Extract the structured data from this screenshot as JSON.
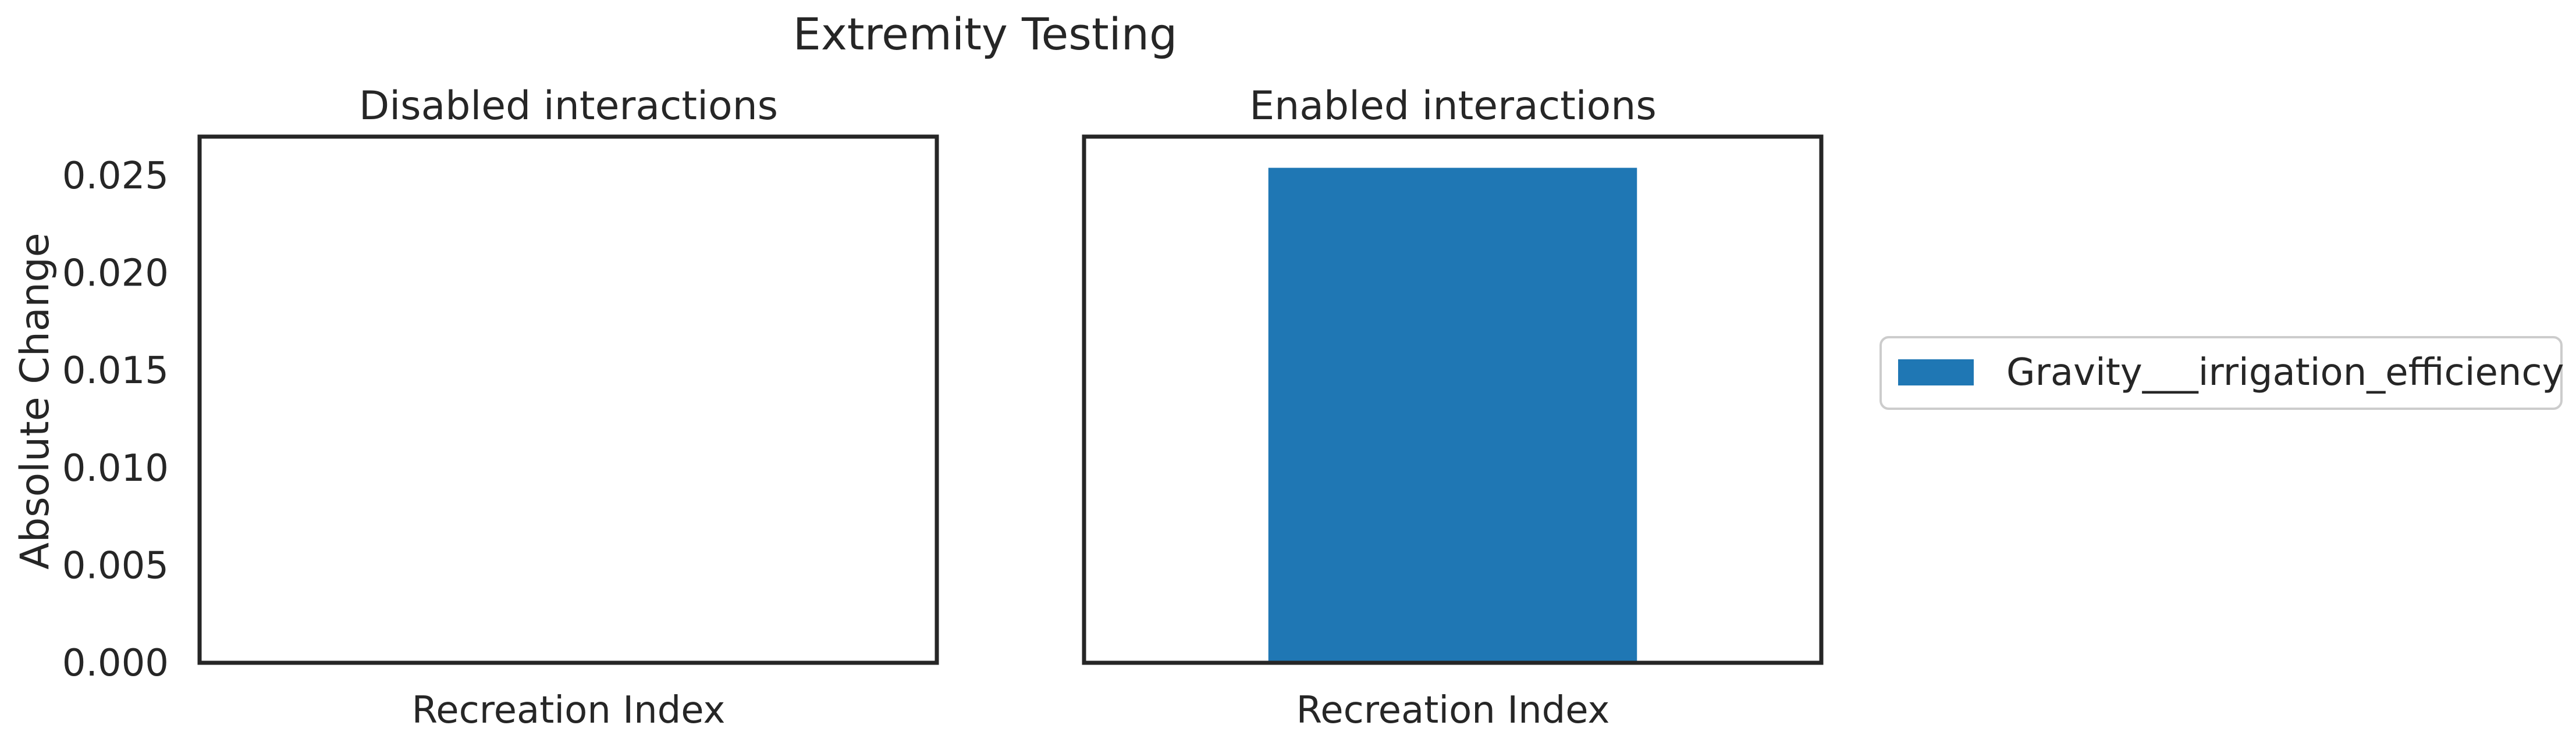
{
  "chart_data": {
    "type": "bar",
    "title": "Extremity Testing",
    "ylabel": "Absolute Change",
    "ylim": [
      0,
      0.027
    ],
    "yticks": [
      "0.000",
      "0.005",
      "0.010",
      "0.015",
      "0.020",
      "0.025"
    ],
    "panels": [
      {
        "title": "Disabled interactions",
        "categories": [
          "Recreation Index"
        ],
        "series": [
          {
            "name": "Gravity___irrigation_efficiency",
            "values": [
              0
            ]
          }
        ]
      },
      {
        "title": "Enabled interactions",
        "categories": [
          "Recreation Index"
        ],
        "series": [
          {
            "name": "Gravity___irrigation_efficiency",
            "values": [
              0.0254
            ]
          }
        ]
      }
    ],
    "legend": {
      "entries": [
        "Gravity___irrigation_efficiency"
      ],
      "placement": "outside-right"
    },
    "colors": {
      "bar": "#1f77b4",
      "frame": "#262626",
      "background": "#ffffff"
    },
    "grid": false
  }
}
